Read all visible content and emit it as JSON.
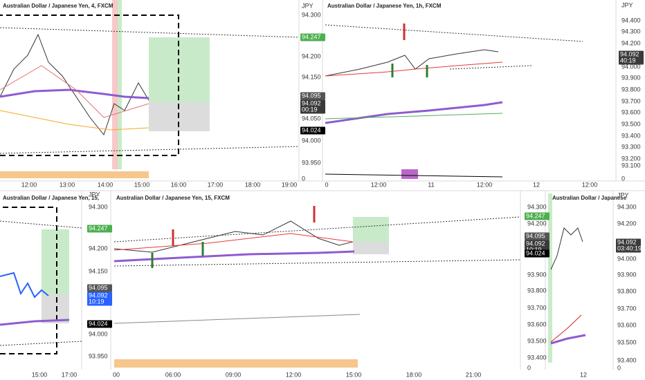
{
  "panels": [
    {
      "title": "Australian Dollar / Japanese Yen, 4, FXCM",
      "price_labels": [
        "JPY",
        "94.300",
        "94.200",
        "94.150",
        "94.050",
        "94.000",
        "93.950",
        "0"
      ],
      "price_tags": [
        {
          "lines": [
            "94.247"
          ],
          "color": "#4caf50"
        },
        {
          "lines": [
            "94.095"
          ],
          "color": "#555555"
        },
        {
          "lines": [
            "94.092",
            "00:19"
          ],
          "color": "#3a3a3a"
        },
        {
          "lines": [
            "94.024"
          ],
          "color": "#000000"
        }
      ],
      "time_labels": [
        "12:00",
        "13:00",
        "14:00",
        "15:00",
        "16:00",
        "17:00",
        "18:00",
        "19:00"
      ]
    },
    {
      "title": "Australian Dollar / Japanese Yen, 1h, FXCM",
      "price_labels": [
        "JPY",
        "94.400",
        "94.300",
        "94.200",
        "94.000",
        "93.900",
        "93.800",
        "93.700",
        "93.600",
        "93.500",
        "93.400",
        "93.300",
        "93.200",
        "93.100",
        "0"
      ],
      "price_tags": [
        {
          "lines": [
            "94.092",
            "40:19"
          ],
          "color": "#3a3a3a"
        }
      ],
      "time_labels": [
        "0",
        "12:00",
        "11",
        "12:00",
        "12",
        "12:00"
      ]
    },
    {
      "title": "Australian Dollar / Japanese Yen, 15,",
      "price_labels": [],
      "price_tags": [
        {
          "lines": [
            "94.247"
          ],
          "color": "#4caf50"
        },
        {
          "lines": [
            "94.095"
          ],
          "color": "#555555"
        },
        {
          "lines": [
            "94.092",
            "10:19"
          ],
          "color": "#2962ff"
        },
        {
          "lines": [
            "94.024"
          ],
          "color": "#000000"
        }
      ],
      "time_labels": [
        "15:00",
        "17:00"
      ]
    },
    {
      "title": "Australian Dollar / Japanese Yen, 15, FXCM",
      "price_labels": [
        "JPY",
        "94.300",
        "94.200",
        "94.150",
        "94.000",
        "93.950",
        "94.300",
        "94.200",
        "93.900",
        "93.800",
        "93.700",
        "93.600",
        "93.500",
        "93.400",
        "0"
      ],
      "price_tags": [
        {
          "lines": [
            "94.247"
          ],
          "color": "#4caf50"
        },
        {
          "lines": [
            "94.095"
          ],
          "color": "#555555"
        },
        {
          "lines": [
            "94.092",
            "10:19"
          ],
          "color": "#3a3a3a"
        },
        {
          "lines": [
            "94.024"
          ],
          "color": "#000000"
        }
      ],
      "time_labels": [
        "00",
        "06:00",
        "09:00",
        "12:00",
        "15:00",
        "18:00",
        "21:00",
        "12"
      ]
    },
    {
      "title": "Australian Dollar / Japanese",
      "price_labels": [
        "JPY",
        "94.300",
        "94.200",
        "94.000",
        "93.900",
        "93.800",
        "93.700",
        "93.600",
        "93.500",
        "93.400",
        "0"
      ],
      "price_tags": [
        {
          "lines": [
            "94.092",
            "03:40:19"
          ],
          "color": "#3a3a3a"
        }
      ],
      "time_labels": []
    }
  ]
}
